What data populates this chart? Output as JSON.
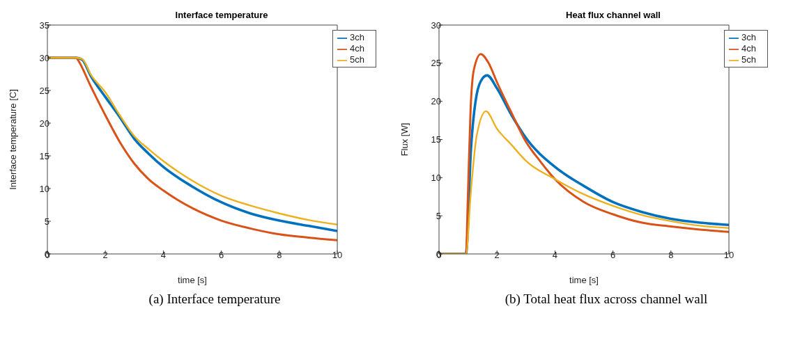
{
  "chart_data": [
    {
      "type": "line",
      "title": "Interface temperature",
      "xlabel": "time [s]",
      "ylabel": "Interface temperature [C]",
      "annotations": [
        "(a) Interface temperature"
      ],
      "xlim": [
        0,
        10
      ],
      "xticks": [
        0,
        2,
        4,
        6,
        8,
        10
      ],
      "ylim": [
        0,
        35
      ],
      "yticks": [
        0,
        5,
        10,
        15,
        20,
        25,
        30,
        35
      ],
      "legend": "top right",
      "grid": false,
      "line_style": "solid",
      "marker": "none",
      "series": [
        {
          "name": "3ch",
          "color": "#0072bd",
          "x": [
            0,
            1,
            1.2,
            1.5,
            2,
            2.5,
            3,
            3.5,
            4,
            5,
            6,
            7,
            8,
            9,
            10
          ],
          "values": [
            30,
            30,
            29.7,
            27.2,
            24,
            20.9,
            17.6,
            15.3,
            13.3,
            10.3,
            7.9,
            6.2,
            5.1,
            4.3,
            3.5
          ]
        },
        {
          "name": "4ch",
          "color": "#d95319",
          "x": [
            0,
            1,
            1.05,
            1.5,
            2,
            2.5,
            3,
            3.5,
            4,
            5,
            6,
            7,
            8,
            9,
            10
          ],
          "values": [
            30,
            30,
            29.7,
            25.6,
            21.2,
            17.1,
            13.8,
            11.4,
            9.7,
            7,
            5.1,
            3.9,
            3,
            2.5,
            2.1
          ]
        },
        {
          "name": "5ch",
          "color": "#edb120",
          "x": [
            0,
            1,
            1.2,
            1.5,
            2,
            2.5,
            3,
            3.5,
            4,
            5,
            6,
            7,
            8,
            9,
            10
          ],
          "values": [
            30,
            30,
            29.8,
            27.4,
            24.7,
            21.2,
            18,
            16,
            14.2,
            11.2,
            8.9,
            7.4,
            6.2,
            5.2,
            4.5
          ]
        }
      ]
    },
    {
      "type": "line",
      "title": "Heat flux channel wall",
      "xlabel": "time [s]",
      "ylabel": "Flux [W]",
      "annotations": [
        "(b) Total heat flux across channel wall"
      ],
      "xlim": [
        0,
        10
      ],
      "xticks": [
        0,
        2,
        4,
        6,
        8,
        10
      ],
      "ylim": [
        0,
        30
      ],
      "yticks": [
        0,
        5,
        10,
        15,
        20,
        25,
        30
      ],
      "legend": "top right",
      "grid": false,
      "line_style": "solid",
      "marker": "none",
      "series": [
        {
          "name": "3ch",
          "color": "#0072bd",
          "x": [
            0,
            0.93,
            1.1,
            1.3,
            1.5,
            1.66,
            2,
            2.5,
            3,
            4,
            5,
            6,
            7,
            8,
            9,
            10
          ],
          "values": [
            0,
            0,
            13.6,
            20.9,
            23,
            23.4,
            21.7,
            18.2,
            15.2,
            11.4,
            8.9,
            6.8,
            5.5,
            4.6,
            4.1,
            3.8
          ]
        },
        {
          "name": "4ch",
          "color": "#d95319",
          "x": [
            0,
            0.93,
            1,
            1.09,
            1.2,
            1.44,
            1.7,
            2,
            2.5,
            3,
            3.5,
            4,
            5,
            6,
            7,
            8,
            9,
            10
          ],
          "values": [
            0,
            0,
            8,
            19,
            24.1,
            26.2,
            25.1,
            22.5,
            18.5,
            14.7,
            12.1,
            9.8,
            6.8,
            5.2,
            4.1,
            3.6,
            3.2,
            2.9
          ]
        },
        {
          "name": "5ch",
          "color": "#edb120",
          "x": [
            0,
            0.93,
            1.1,
            1.3,
            1.62,
            2,
            2.5,
            3,
            4,
            5,
            6,
            7,
            8,
            9,
            10
          ],
          "values": [
            0,
            0,
            8.2,
            15.5,
            18.7,
            16.4,
            14.3,
            12.2,
            9.8,
            7.8,
            6.3,
            5.1,
            4.3,
            3.7,
            3.4
          ]
        }
      ]
    }
  ]
}
